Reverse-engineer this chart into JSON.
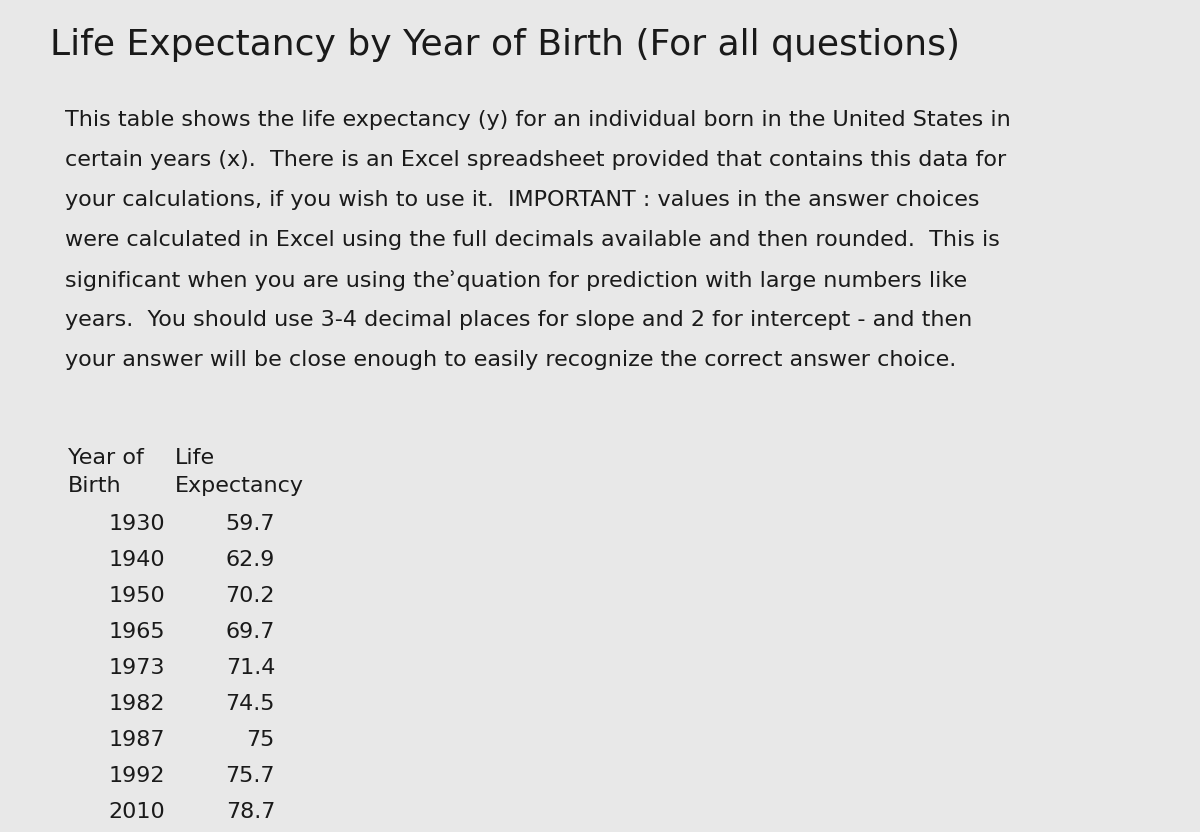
{
  "title": "Life Expectancy by Year of Birth (For all questions)",
  "description_lines": [
    "This table shows the life expectancy (y) for an individual born in the United States in",
    "certain years (x).  There is an Excel spreadsheet provided that contains this data for",
    "your calculations, if you wish to use it.  IMPORTANT : values in the answer choices",
    "were calculated in Excel using the full decimals available and then rounded.  This is",
    "significant when you are using theʾquation for prediction with large numbers like",
    "years.  You should use 3-4 decimal places for slope and 2 for intercept - and then",
    "your answer will be close enough to easily recognize the correct answer choice."
  ],
  "col1_header_line1": "Year of",
  "col1_header_line2": "Birth",
  "col2_header_line1": "Life",
  "col2_header_line2": "Expectancy",
  "years": [
    "1930",
    "1940",
    "1950",
    "1965",
    "1973",
    "1982",
    "1987",
    "1992",
    "2010"
  ],
  "life_expectancy": [
    "59.7",
    "62.9",
    "70.2",
    "69.7",
    "71.4",
    "74.5",
    "75",
    "75.7",
    "78.7"
  ],
  "background_color": "#e8e8e8",
  "text_color": "#1a1a1a",
  "title_fontsize": 26,
  "body_fontsize": 16,
  "table_fontsize": 16,
  "header_fontsize": 16
}
